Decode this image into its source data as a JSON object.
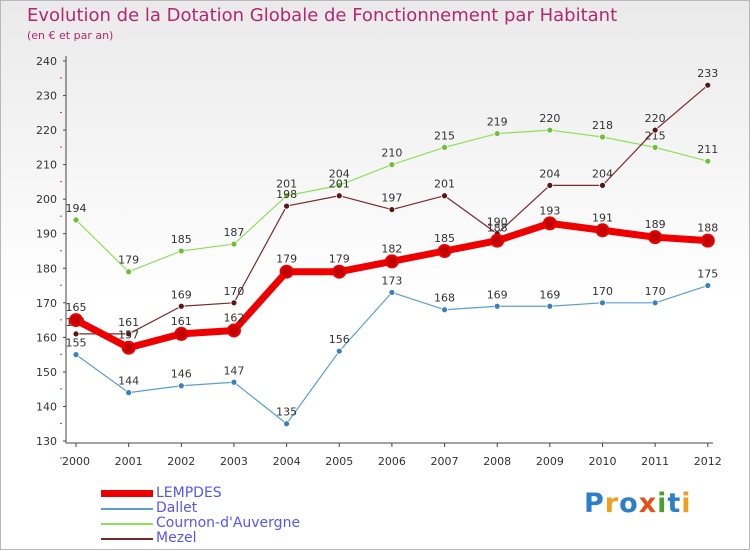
{
  "chart_data": {
    "type": "line",
    "title": "Evolution de la Dotation Globale de Fonctionnement par Habitant",
    "subtitle": "(en € et par an)",
    "xlabel": "",
    "ylabel": "",
    "categories": [
      "2000",
      "2001",
      "2002",
      "2003",
      "2004",
      "2005",
      "2006",
      "2007",
      "2008",
      "2009",
      "2010",
      "2011",
      "2012"
    ],
    "ylim": [
      130,
      240
    ],
    "yticks": [
      130,
      140,
      150,
      160,
      170,
      180,
      190,
      200,
      210,
      220,
      230,
      240
    ],
    "grid": false,
    "series": [
      {
        "name": "Cournon-d'Auvergne",
        "color": "#8ee05a",
        "marker": "#6ec03a",
        "width": 1.2,
        "values": [
          194,
          179,
          185,
          187,
          201,
          204,
          210,
          215,
          219,
          220,
          218,
          215,
          211
        ]
      },
      {
        "name": "Mezel",
        "color": "#7a2a2a",
        "marker": "#5a1515",
        "width": 1.2,
        "values": [
          161,
          161,
          169,
          170,
          198,
          201,
          197,
          201,
          190,
          204,
          204,
          220,
          233
        ]
      },
      {
        "name": "Dallet",
        "color": "#5a9fd4",
        "marker": "#3a7fc0",
        "width": 1.2,
        "values": [
          155,
          144,
          146,
          147,
          135,
          156,
          173,
          168,
          169,
          169,
          170,
          170,
          175
        ]
      },
      {
        "name": "LEMPDES",
        "color": "#ee0000",
        "marker": "#c00000",
        "width": 7,
        "values": [
          165,
          157,
          161,
          162,
          179,
          179,
          182,
          185,
          188,
          193,
          191,
          189,
          188
        ]
      }
    ],
    "legend": [
      "LEMPDES",
      "Dallet",
      "Cournon-d'Auvergne",
      "Mezel"
    ],
    "legend_position": "bottom-left"
  },
  "branding": {
    "logo_text": "Proxiti"
  }
}
